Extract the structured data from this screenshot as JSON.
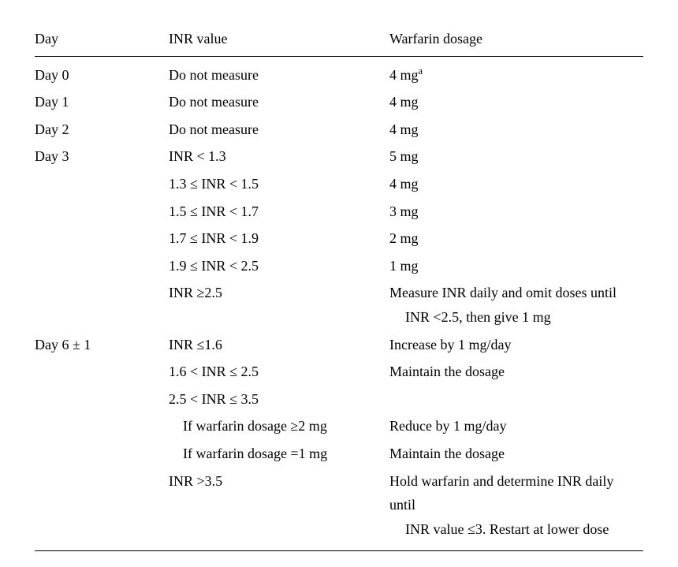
{
  "headers": {
    "day": "Day",
    "inr": "INR value",
    "dose": "Warfarin dosage"
  },
  "rows": [
    {
      "day": "Day 0",
      "inr": "Do not measure",
      "dose": "4 mg",
      "dose_sup": "a"
    },
    {
      "day": "Day 1",
      "inr": "Do not measure",
      "dose": "4 mg"
    },
    {
      "day": "Day 2",
      "inr": "Do not measure",
      "dose": "4 mg"
    },
    {
      "day": "Day 3",
      "inr": "INR < 1.3",
      "dose": "5 mg"
    },
    {
      "day": "",
      "inr": "1.3 ≤ INR < 1.5",
      "dose": "4 mg"
    },
    {
      "day": "",
      "inr": "1.5 ≤ INR < 1.7",
      "dose": "3 mg"
    },
    {
      "day": "",
      "inr": "1.7 ≤ INR < 1.9",
      "dose": "2 mg"
    },
    {
      "day": "",
      "inr": "1.9 ≤ INR < 2.5",
      "dose": "1 mg"
    },
    {
      "day": "",
      "inr": "INR ≥2.5",
      "dose": "Measure INR daily and omit doses until",
      "dose_wrap": "INR <2.5, then give 1 mg"
    },
    {
      "day": "Day 6 ± 1",
      "inr": "INR ≤1.6",
      "dose": "Increase by 1 mg/day"
    },
    {
      "day": "",
      "inr": "1.6 < INR ≤ 2.5",
      "dose": "Maintain the dosage"
    },
    {
      "day": "",
      "inr": "2.5 < INR ≤ 3.5",
      "dose": ""
    },
    {
      "day": "",
      "inr_indent": true,
      "inr": "If warfarin dosage ≥2 mg",
      "dose": "Reduce by 1 mg/day"
    },
    {
      "day": "",
      "inr_indent": true,
      "inr": "If warfarin dosage =1 mg",
      "dose": "Maintain the dosage"
    },
    {
      "day": "",
      "inr": "INR >3.5",
      "dose": "Hold warfarin and determine INR daily until",
      "dose_wrap": "INR value ≤3. Restart at lower dose"
    }
  ]
}
